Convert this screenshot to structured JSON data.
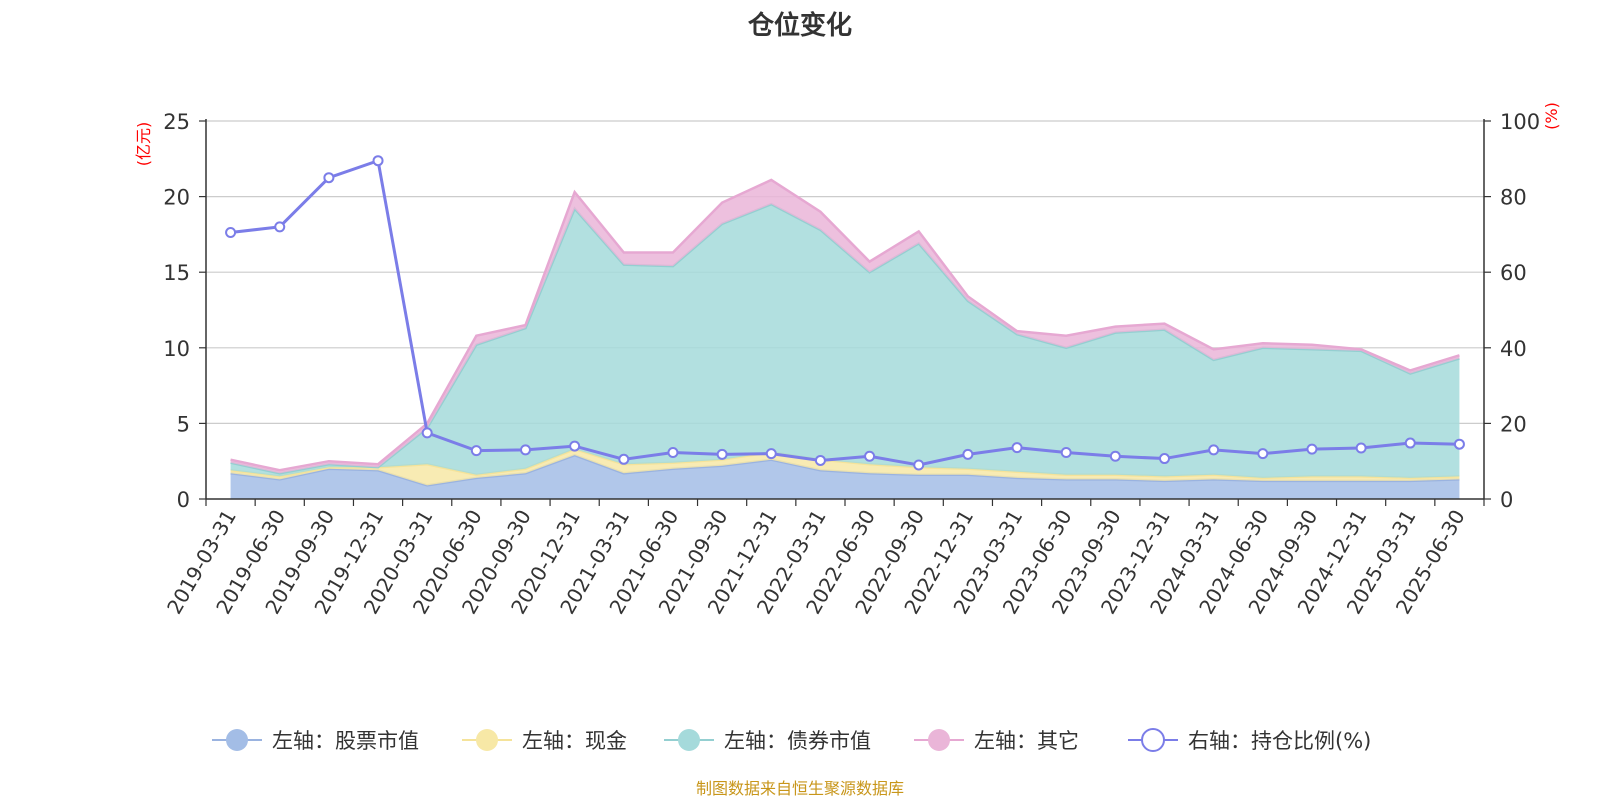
{
  "chart_data": {
    "type": "area",
    "title": "仓位变化",
    "left_axis_unit": "(亿元)",
    "right_axis_unit": "(%)",
    "left_ylim": [
      0,
      25
    ],
    "left_ticks": [
      "0",
      "5",
      "10",
      "15",
      "20",
      "25"
    ],
    "right_ylim": [
      0,
      100
    ],
    "right_ticks": [
      "0",
      "20",
      "40",
      "60",
      "80",
      "100"
    ],
    "categories": [
      "2019-03-31",
      "2019-06-30",
      "2019-09-30",
      "2019-12-31",
      "2020-03-31",
      "2020-06-30",
      "2020-09-30",
      "2020-12-31",
      "2021-03-31",
      "2021-06-30",
      "2021-09-30",
      "2021-12-31",
      "2022-03-31",
      "2022-06-30",
      "2022-09-30",
      "2022-12-31",
      "2023-03-31",
      "2023-06-30",
      "2023-09-30",
      "2023-12-31",
      "2024-03-31",
      "2024-06-30",
      "2024-09-30",
      "2024-12-31",
      "2025-03-31",
      "2025-06-30"
    ],
    "grid": true,
    "legend_position": "bottom",
    "stacked_series": [
      {
        "name": "左轴：股票市值",
        "axis": "left",
        "color": "#a3bde6",
        "line_color": "#9ab3e0",
        "values": [
          1.7,
          1.3,
          2.0,
          1.9,
          0.9,
          1.4,
          1.7,
          2.9,
          1.7,
          2.0,
          2.2,
          2.6,
          1.9,
          1.7,
          1.6,
          1.6,
          1.4,
          1.3,
          1.3,
          1.2,
          1.3,
          1.2,
          1.2,
          1.2,
          1.2,
          1.3
        ]
      },
      {
        "name": "左轴：现金",
        "axis": "left",
        "color": "#f7e8a6",
        "line_color": "#f5e39a",
        "values": [
          0.2,
          0.2,
          0.1,
          0.2,
          1.4,
          0.2,
          0.3,
          0.4,
          0.6,
          0.4,
          0.4,
          0.5,
          0.7,
          0.6,
          0.5,
          0.4,
          0.4,
          0.3,
          0.3,
          0.3,
          0.3,
          0.2,
          0.3,
          0.3,
          0.2,
          0.2
        ]
      },
      {
        "name": "左轴：债券市值",
        "axis": "left",
        "color": "#a5dadb",
        "line_color": "#94cfd1",
        "values": [
          0.5,
          0.2,
          0.2,
          0.0,
          2.4,
          8.6,
          9.3,
          15.9,
          13.2,
          13.0,
          15.6,
          16.4,
          15.2,
          12.7,
          14.8,
          11.1,
          9.1,
          8.4,
          9.4,
          9.7,
          7.6,
          8.6,
          8.4,
          8.3,
          6.9,
          7.8
        ]
      },
      {
        "name": "左轴：其它",
        "axis": "left",
        "color": "#eab5d8",
        "line_color": "#e6a8d2",
        "values": [
          0.2,
          0.2,
          0.2,
          0.2,
          0.3,
          0.6,
          0.2,
          1.1,
          0.8,
          0.9,
          1.4,
          1.6,
          1.2,
          0.7,
          0.8,
          0.3,
          0.2,
          0.8,
          0.4,
          0.4,
          0.7,
          0.3,
          0.3,
          0.1,
          0.2,
          0.2
        ]
      }
    ],
    "line_series": {
      "name": "右轴：持仓比例(%)",
      "axis": "right",
      "color": "#7b7de8",
      "values": [
        70.5,
        72,
        85,
        89.5,
        17.5,
        12.8,
        13,
        14,
        10.5,
        12.3,
        11.8,
        12,
        10.2,
        11.3,
        9,
        11.8,
        13.6,
        12.3,
        11.3,
        10.7,
        13,
        12,
        13.2,
        13.5,
        14.8,
        14.5
      ]
    },
    "source_note": "制图数据来自恒生聚源数据库"
  }
}
